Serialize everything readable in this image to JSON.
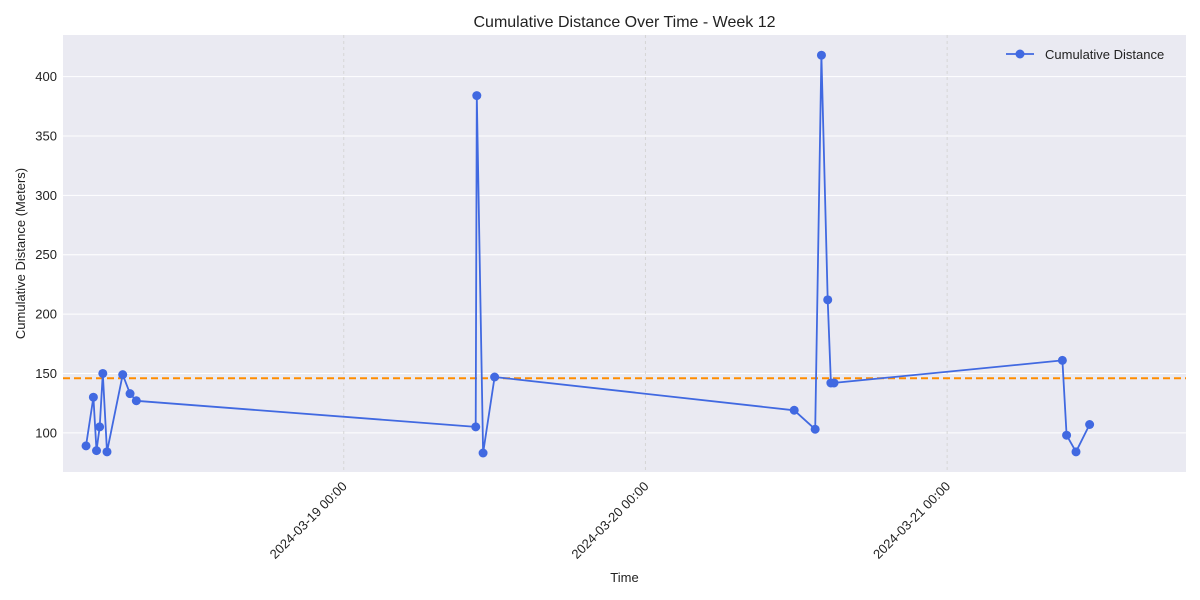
{
  "chart_data": {
    "type": "line",
    "title": "Cumulative Distance Over Time - Week 12",
    "xlabel": "Time",
    "ylabel": "Cumulative Distance (Meters)",
    "x_axis": "datetime",
    "xlim": [
      "2024-03-18 01:40",
      "2024-03-21 19:00"
    ],
    "ylim": [
      67,
      435
    ],
    "x_ticks": [
      "2024-03-19 00:00",
      "2024-03-20 00:00",
      "2024-03-21 00:00"
    ],
    "y_ticks": [
      100,
      150,
      200,
      250,
      300,
      350,
      400
    ],
    "grid": true,
    "legend_position": "top-right",
    "series": [
      {
        "name": "Cumulative Distance",
        "color": "#4169e1",
        "marker": "circle",
        "points": [
          {
            "x": "2024-03-18 03:30",
            "y": 89
          },
          {
            "x": "2024-03-18 04:05",
            "y": 130
          },
          {
            "x": "2024-03-18 04:20",
            "y": 85
          },
          {
            "x": "2024-03-18 04:35",
            "y": 105
          },
          {
            "x": "2024-03-18 04:50",
            "y": 150
          },
          {
            "x": "2024-03-18 05:10",
            "y": 84
          },
          {
            "x": "2024-03-18 06:25",
            "y": 149
          },
          {
            "x": "2024-03-18 07:00",
            "y": 133
          },
          {
            "x": "2024-03-18 07:30",
            "y": 127
          },
          {
            "x": "2024-03-19 10:30",
            "y": 105
          },
          {
            "x": "2024-03-19 10:35",
            "y": 384
          },
          {
            "x": "2024-03-19 11:05",
            "y": 83
          },
          {
            "x": "2024-03-19 12:00",
            "y": 147
          },
          {
            "x": "2024-03-20 11:50",
            "y": 119
          },
          {
            "x": "2024-03-20 13:30",
            "y": 103
          },
          {
            "x": "2024-03-20 14:00",
            "y": 418
          },
          {
            "x": "2024-03-20 14:30",
            "y": 212
          },
          {
            "x": "2024-03-20 14:45",
            "y": 142
          },
          {
            "x": "2024-03-20 15:00",
            "y": 142
          },
          {
            "x": "2024-03-21 09:10",
            "y": 161
          },
          {
            "x": "2024-03-21 09:30",
            "y": 98
          },
          {
            "x": "2024-03-21 10:15",
            "y": 84
          },
          {
            "x": "2024-03-21 11:20",
            "y": 107
          }
        ]
      }
    ],
    "reference_line": {
      "type": "horizontal",
      "y": 146,
      "color": "#ff8c00",
      "style": "dashed"
    },
    "style": {
      "plot_bg": "#eaeaf2",
      "grid_color": "#ffffff"
    }
  }
}
